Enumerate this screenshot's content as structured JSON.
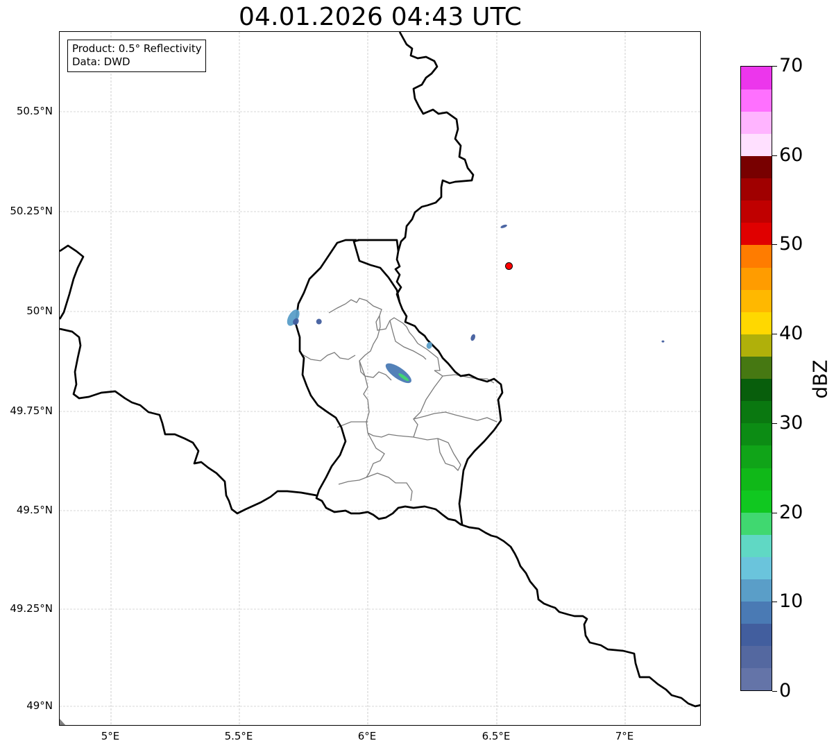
{
  "title": "04.01.2026 04:43 UTC",
  "info_box": {
    "product": "Product: 0.5° Reflectivity",
    "data": "Data: DWD"
  },
  "axes": {
    "lon_ticks": [
      "5°E",
      "5.5°E",
      "6°E",
      "6.5°E",
      "7°E"
    ],
    "lat_ticks": [
      "50.5°N",
      "50.25°N",
      "50°N",
      "49.75°N",
      "49.5°N",
      "49.25°N",
      "49°N"
    ],
    "lon_range": [
      4.8,
      7.3
    ],
    "lat_range": [
      48.95,
      50.7
    ],
    "grid": true
  },
  "colorbar": {
    "label": "dBZ",
    "ticks": [
      "0",
      "10",
      "20",
      "30",
      "40",
      "50",
      "60",
      "70"
    ],
    "range": [
      0,
      70
    ],
    "step": 2.5,
    "colors": [
      "#6474a8",
      "#5468a0",
      "#425e9e",
      "#4a7ab4",
      "#5a9ec8",
      "#6ac4dc",
      "#60d8c4",
      "#40d870",
      "#10c820",
      "#10b818",
      "#10a418",
      "#0c8c14",
      "#0a7810",
      "#085e0c",
      "#467812",
      "#b0b00a",
      "#ffd800",
      "#ffb800",
      "#ff9c00",
      "#ff7c00",
      "#e00000",
      "#c00000",
      "#a00000",
      "#780000",
      "#ffe0ff",
      "#ffb4ff",
      "#ff70ff",
      "#ec36ec"
    ]
  },
  "radar_site": {
    "lon": 6.55,
    "lat": 50.11,
    "color": "#ff0000"
  },
  "echoes": [
    {
      "lon": 6.12,
      "lat": 49.84,
      "dbz": 8
    },
    {
      "lon": 6.14,
      "lat": 49.83,
      "dbz": 18
    },
    {
      "lon": 5.71,
      "lat": 49.98,
      "dbz": 12
    },
    {
      "lon": 5.72,
      "lat": 49.97,
      "dbz": 6
    },
    {
      "lon": 5.81,
      "lat": 49.97,
      "dbz": 6
    },
    {
      "lon": 6.24,
      "lat": 49.91,
      "dbz": 10
    },
    {
      "lon": 6.41,
      "lat": 49.93,
      "dbz": 6
    },
    {
      "lon": 6.53,
      "lat": 50.21,
      "dbz": 6
    },
    {
      "lon": 7.15,
      "lat": 49.92,
      "dbz": 6
    }
  ]
}
